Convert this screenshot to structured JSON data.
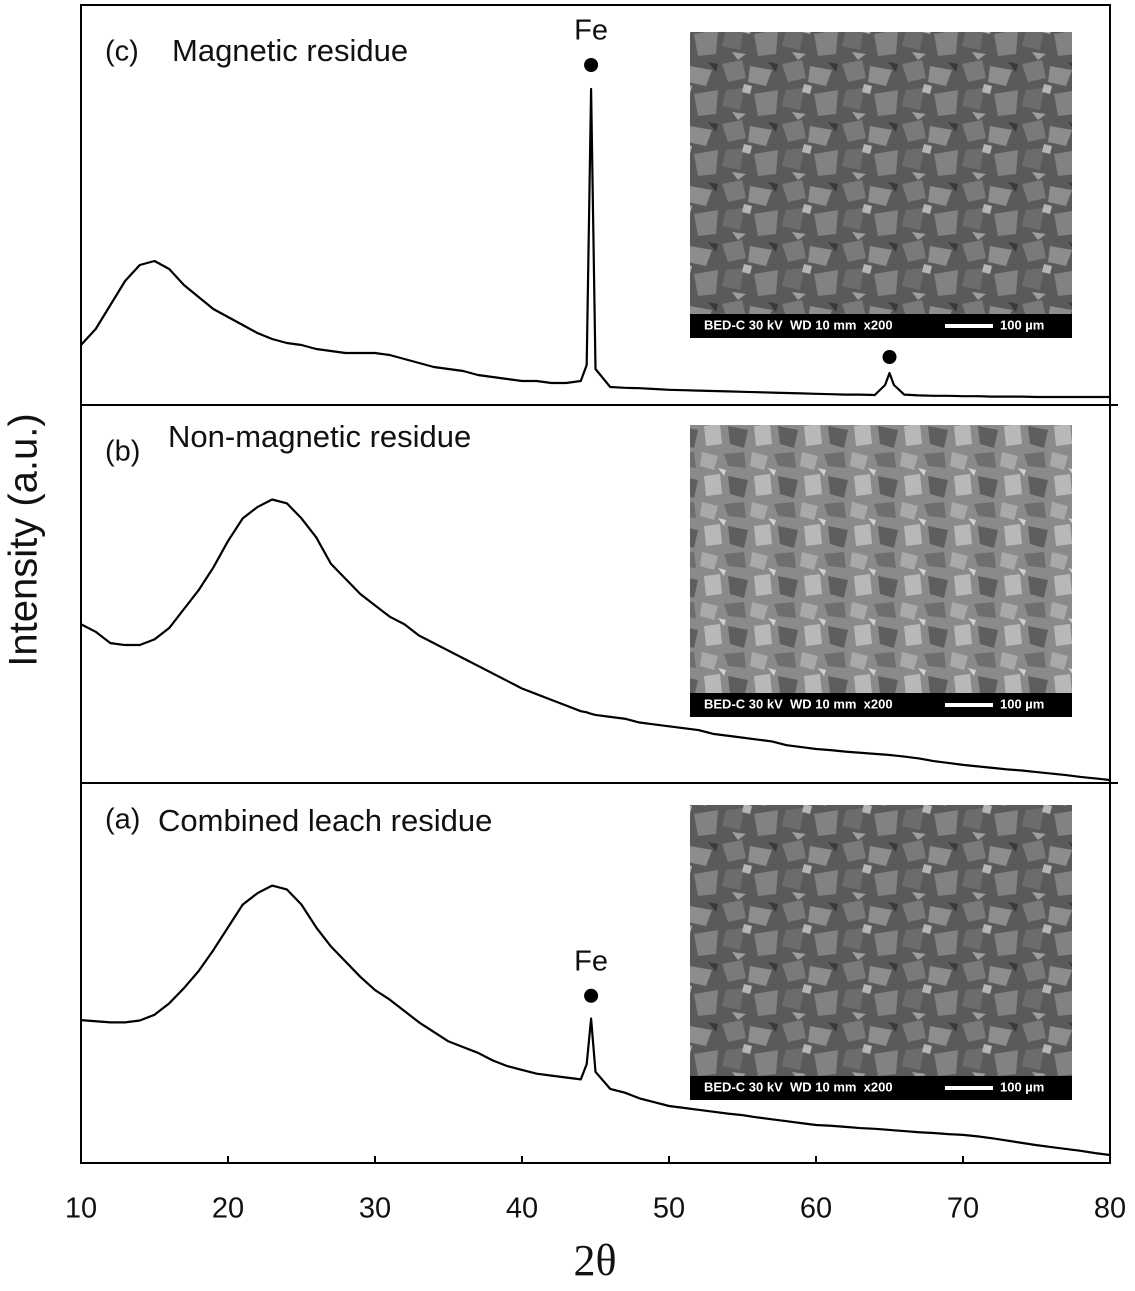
{
  "chart_data": {
    "type": "line",
    "xlabel": "2θ",
    "ylabel": "Intensity (a.u.)",
    "xlim": [
      10,
      80
    ],
    "xticks": [
      10,
      20,
      30,
      40,
      50,
      60,
      70,
      80
    ],
    "color": "#000000",
    "x": [
      10,
      11,
      12,
      13,
      14,
      15,
      16,
      17,
      18,
      19,
      20,
      21,
      22,
      23,
      24,
      25,
      26,
      27,
      28,
      29,
      30,
      31,
      32,
      33,
      34,
      35,
      36,
      37,
      38,
      39,
      40,
      41,
      42,
      43,
      44,
      44.4,
      44.7,
      45,
      46,
      47,
      48,
      49,
      50,
      51,
      52,
      53,
      54,
      55,
      56,
      57,
      58,
      59,
      60,
      61,
      62,
      63,
      64,
      64.7,
      65,
      65.3,
      66,
      67,
      68,
      69,
      70,
      71,
      72,
      73,
      74,
      75,
      76,
      77,
      78,
      79,
      80
    ],
    "panels": [
      {
        "tag": "(c)",
        "label": "Magnetic residue",
        "ylim": [
          0,
          100
        ],
        "values": [
          15,
          19,
          25,
          31,
          35,
          36,
          34,
          30,
          27,
          24,
          22,
          20,
          18,
          16.5,
          15.5,
          15,
          14,
          13.5,
          13,
          13,
          13,
          12.5,
          11.5,
          10.5,
          9.5,
          9,
          8.5,
          7.5,
          7,
          6.5,
          6,
          6,
          5.5,
          5.5,
          6,
          10,
          79,
          9,
          4.5,
          4.3,
          4.2,
          4,
          3.8,
          3.7,
          3.6,
          3.5,
          3.4,
          3.3,
          3.2,
          3.1,
          3,
          2.9,
          2.8,
          2.7,
          2.6,
          2.6,
          2.5,
          5,
          8,
          5,
          2.6,
          2.4,
          2.3,
          2.3,
          2.2,
          2.2,
          2.1,
          2.1,
          2.1,
          2,
          2,
          2,
          2,
          2,
          2
        ],
        "markers": [
          {
            "x": 44.7,
            "y": 85,
            "label": "Fe"
          },
          {
            "x": 65,
            "y": 12
          }
        ],
        "image_caption": "BED-C 30 kV  WD 10 mm  x200",
        "scale_bar": "100 µm"
      },
      {
        "tag": "(b)",
        "label": "Non-magnetic residue",
        "ylim": [
          0,
          100
        ],
        "values": [
          42,
          40,
          37,
          36.5,
          36.5,
          38,
          41,
          46,
          51,
          57,
          64,
          70,
          73,
          75,
          74,
          70,
          65,
          58,
          54,
          50,
          47,
          44,
          42,
          39,
          37,
          35,
          33,
          31,
          29,
          27,
          25,
          23.5,
          22,
          20.5,
          19,
          18.7,
          18.3,
          18,
          17.5,
          17,
          16,
          15.5,
          15,
          14.5,
          14,
          13,
          12.5,
          12,
          11.5,
          11,
          10,
          9.5,
          9,
          8.7,
          8.3,
          8,
          7.7,
          7.5,
          7.4,
          7.3,
          7,
          6.5,
          5.8,
          5.3,
          4.8,
          4.4,
          4,
          3.6,
          3.3,
          2.9,
          2.5,
          2.1,
          1.6,
          1.2,
          0.8
        ],
        "markers": [],
        "image_caption": "BED-C 30 kV  WD 10 mm  x200",
        "scale_bar": "100 µm"
      },
      {
        "tag": "(a)",
        "label": "Combined leach residue",
        "ylim": [
          0,
          100
        ],
        "values": [
          37.6,
          37.3,
          37,
          37,
          37.5,
          39,
          42,
          46,
          50.5,
          56,
          62,
          68,
          71,
          73,
          72,
          68,
          62,
          57,
          53,
          49,
          45.5,
          43,
          40,
          37,
          34.5,
          32,
          30.5,
          29,
          27,
          25.5,
          24.5,
          23.5,
          23,
          22.5,
          22,
          26,
          38,
          24,
          19.5,
          18.5,
          17,
          16,
          15,
          14.5,
          14,
          13.5,
          13,
          12.6,
          12,
          11.5,
          11,
          10.5,
          10,
          9.8,
          9.5,
          9.2,
          9,
          8.8,
          8.7,
          8.6,
          8.4,
          8.1,
          7.9,
          7.6,
          7.4,
          7,
          6.5,
          5.9,
          5.3,
          4.7,
          4.2,
          3.7,
          3.2,
          2.6,
          2.1
        ],
        "markers": [
          {
            "x": 44.7,
            "y": 44,
            "label": "Fe"
          }
        ],
        "image_caption": "BED-C 30 kV  WD 10 mm  x200",
        "scale_bar": "100 µm"
      }
    ]
  }
}
